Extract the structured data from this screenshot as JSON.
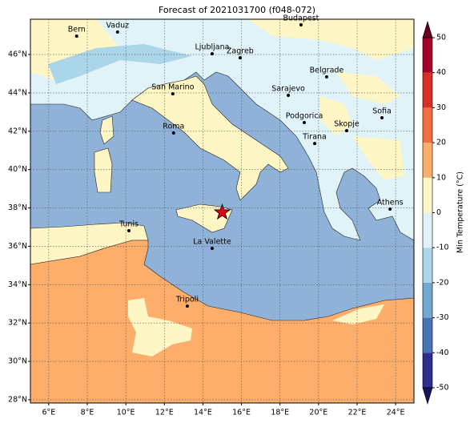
{
  "chart_data": {
    "type": "map",
    "title": "Forecast of 2021031700 (f048-072)",
    "xlim": [
      5.05,
      24.95
    ],
    "ylim": [
      27.83,
      47.84
    ],
    "xticks": [
      {
        "value": 6,
        "label": "6°E"
      },
      {
        "value": 8,
        "label": "8°E"
      },
      {
        "value": 10,
        "label": "10°E"
      },
      {
        "value": 12,
        "label": "12°E"
      },
      {
        "value": 14,
        "label": "14°E"
      },
      {
        "value": 16,
        "label": "16°E"
      },
      {
        "value": 18,
        "label": "18°E"
      },
      {
        "value": 20,
        "label": "20°E"
      },
      {
        "value": 22,
        "label": "22°E"
      },
      {
        "value": 24,
        "label": "24°E"
      }
    ],
    "yticks": [
      {
        "value": 28,
        "label": "28°N"
      },
      {
        "value": 30,
        "label": "30°N"
      },
      {
        "value": 32,
        "label": "32°N"
      },
      {
        "value": 34,
        "label": "34°N"
      },
      {
        "value": 36,
        "label": "36°N"
      },
      {
        "value": 38,
        "label": "38°N"
      },
      {
        "value": 40,
        "label": "40°N"
      },
      {
        "value": 42,
        "label": "42°N"
      },
      {
        "value": 44,
        "label": "44°N"
      },
      {
        "value": 46,
        "label": "46°N"
      }
    ],
    "grid": true,
    "cities": {
      "names": [
        "Bern",
        "Vaduz",
        "Budapest",
        "Ljubljana",
        "Zagreb",
        "Belgrade",
        "San Marino",
        "Sarajevo",
        "Sofia",
        "Podgorica",
        "Skopje",
        "Roma",
        "Tirana",
        "Athens",
        "Tunis",
        "La Valette",
        "Tripoli"
      ],
      "lon": [
        7.45,
        9.57,
        19.09,
        14.48,
        15.93,
        20.42,
        12.44,
        18.43,
        23.29,
        19.26,
        21.46,
        12.48,
        19.8,
        23.71,
        10.16,
        14.48,
        13.19
      ],
      "lat": [
        46.96,
        47.17,
        47.55,
        46.04,
        45.83,
        44.83,
        43.95,
        43.87,
        42.7,
        42.45,
        42.03,
        41.91,
        41.36,
        37.94,
        36.81,
        35.89,
        32.88
      ],
      "color": "#000000"
    },
    "marker": {
      "lon": 15.0,
      "lat": 37.77,
      "color": "#e3001b"
    },
    "colorbar": {
      "label": "Min Temperature (°C)",
      "ticks": [
        -50,
        -40,
        -30,
        -20,
        -10,
        0,
        10,
        20,
        30,
        40,
        50
      ],
      "colors": [
        "#2c2f8f",
        "#4575b4",
        "#74a9cf",
        "#abd5e8",
        "#e0f3f8",
        "#fef6c4",
        "#fdae6b",
        "#f46d43",
        "#d73027",
        "#a50026"
      ],
      "under": "#14155c",
      "over": "#67001f"
    }
  }
}
